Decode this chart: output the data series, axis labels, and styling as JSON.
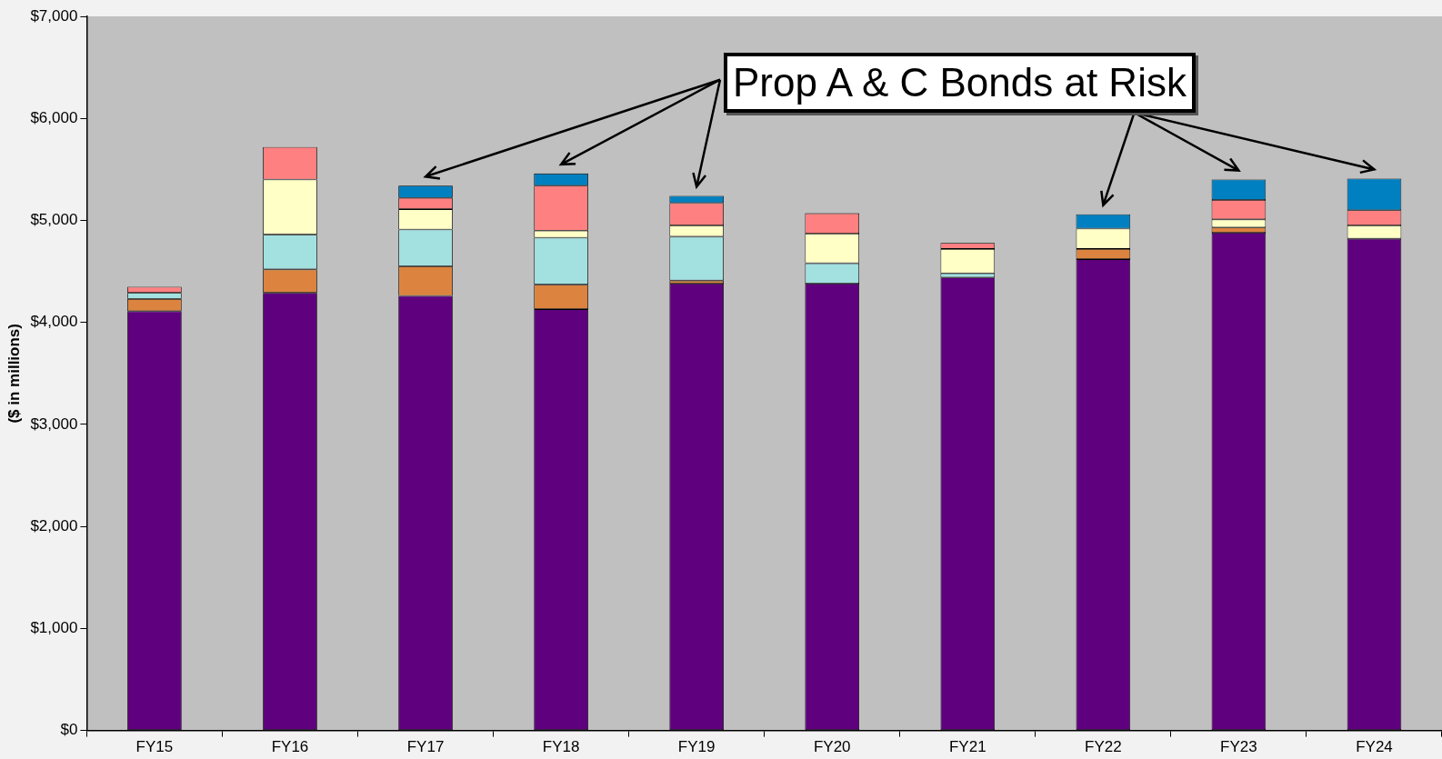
{
  "chart_data": {
    "type": "bar",
    "stacked": true,
    "ylabel": "($ in millions)",
    "annotations": [
      "Prop A & C Bonds at Risk"
    ],
    "categories": [
      "FY15",
      "FY16",
      "FY17",
      "FY18",
      "FY19",
      "FY20",
      "FY21",
      "FY22",
      "FY23",
      "FY24"
    ],
    "series": [
      {
        "color": "#5f007f",
        "values": [
          4110,
          4290,
          4260,
          4130,
          4380,
          4380,
          4440,
          4620,
          4880,
          4820
        ]
      },
      {
        "color": "#dc843f",
        "values": [
          120,
          230,
          290,
          240,
          30,
          0,
          0,
          100,
          50,
          0
        ]
      },
      {
        "color": "#a3e0e0",
        "values": [
          60,
          340,
          360,
          460,
          430,
          200,
          40,
          0,
          0,
          0
        ]
      },
      {
        "color": "#ffffc6",
        "values": [
          0,
          540,
          200,
          70,
          110,
          290,
          240,
          200,
          80,
          130
        ]
      },
      {
        "color": "#ff8080",
        "values": [
          60,
          320,
          110,
          440,
          220,
          200,
          60,
          0,
          190,
          150
        ]
      },
      {
        "color": "#0080c0",
        "values": [
          0,
          0,
          120,
          120,
          70,
          0,
          0,
          140,
          200,
          310
        ]
      }
    ],
    "ylim": [
      0,
      7000
    ],
    "yticks": [
      {
        "value": 0,
        "label": "$0"
      },
      {
        "value": 1000,
        "label": "$1,000"
      },
      {
        "value": 2000,
        "label": "$2,000"
      },
      {
        "value": 3000,
        "label": "$3,000"
      },
      {
        "value": 4000,
        "label": "$4,000"
      },
      {
        "value": 5000,
        "label": "$5,000"
      },
      {
        "value": 6000,
        "label": "$6,000"
      },
      {
        "value": 7000,
        "label": "$7,000"
      }
    ],
    "grid": false,
    "legend": false
  }
}
